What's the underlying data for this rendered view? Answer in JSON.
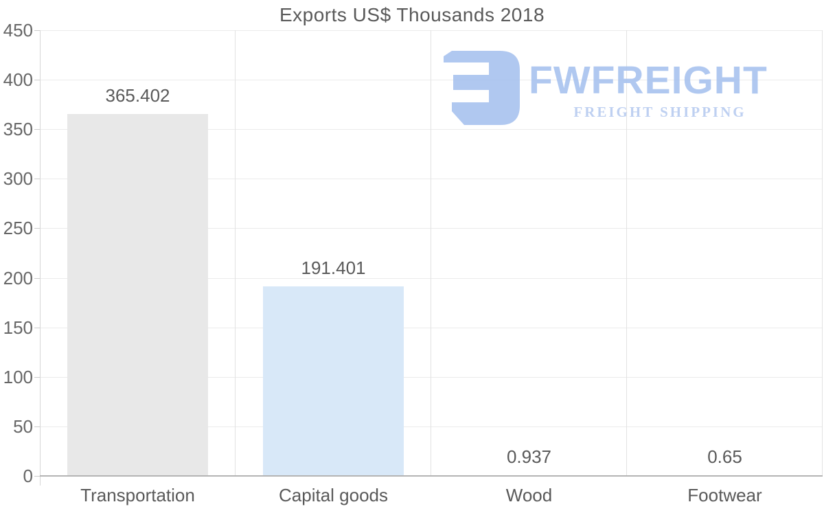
{
  "title": "Exports US$ Thousands 2018",
  "watermark": {
    "icon": "fwfreight-logo-mark",
    "brand": "FWFREIGHT",
    "tagline": "FREIGHT SHIPPING",
    "icon_color": "#a6c1ee",
    "brand_color": "#a6c1ef",
    "tagline_color": "#b6caf0"
  },
  "chart_data": {
    "type": "bar",
    "title": "Exports US$ Thousands 2018",
    "categories": [
      "Transportation",
      "Capital goods",
      "Wood",
      "Footwear"
    ],
    "values": [
      365.402,
      191.401,
      0.937,
      0.65
    ],
    "value_labels": [
      "365.402",
      "191.401",
      "0.937",
      "0.65"
    ],
    "bar_colors": [
      "#e8e8e8",
      "#d8e8f8",
      "#cfe2f4",
      "#e8e8e8"
    ],
    "xlabel": "",
    "ylabel": "",
    "ylim": [
      0,
      450
    ],
    "ytick_step": 50,
    "yticks": [
      0,
      50,
      100,
      150,
      200,
      250,
      300,
      350,
      400,
      450
    ],
    "grid": true,
    "legend": false,
    "title_color": "#595959",
    "label_color": "#595959",
    "tick_label_color": "#666666",
    "gridline_color": "#ebebeb",
    "vline_color": "#e2e2e2",
    "baseline_color": "#b3b3b3",
    "axisline_color": "#d6d6d6",
    "tick_mark_color": "#cccccc"
  }
}
